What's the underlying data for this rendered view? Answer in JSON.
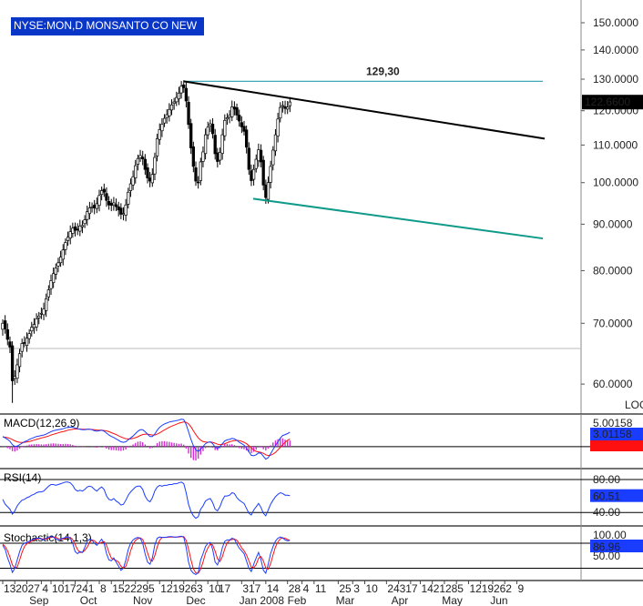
{
  "symbol_title": "NYSE:MON,D MONSANTO CO NEW",
  "log_label": "LOG",
  "colors": {
    "title_bg": "#0a36c8",
    "price_tag_bg": "#000000",
    "macd_tag_bg": "#1a3cff",
    "macd_signal_tag_bg": "#ff1010",
    "rsi_tag_bg": "#1a3cff",
    "stoch_tag_bg": "#1a3cff",
    "resistance": "#000000",
    "support": "#0f9a8a",
    "peak_line": "#3fa9b5",
    "macd_line": "#1a3cff",
    "signal_line": "#ff1010",
    "histogram": "#d030d0",
    "rsi_line": "#1a3cff",
    "stoch_k": "#1a3cff",
    "stoch_d": "#ff1010"
  },
  "chart_data": [
    {
      "type": "candlestick",
      "panel": "price",
      "yscale": "log",
      "ylim": [
        56,
        156
      ],
      "y_ticks": [
        "150.0000",
        "140.0000",
        "130.0000",
        "120.0000",
        "110.0000",
        "100.0000",
        "90.0000",
        "80.0000",
        "70.0000",
        "60.0000"
      ],
      "y_tick_values": [
        150,
        140,
        130,
        120,
        110,
        100,
        90,
        80,
        70,
        60
      ],
      "last_price_label": "122.6600",
      "last_price": 122.66,
      "peak_annotation": "129,30",
      "peak_value": 129.3,
      "closes": [
        70.0,
        69.0,
        67.2,
        65.9,
        60.5,
        61.2,
        63.0,
        64.8,
        66.5,
        66.6,
        67.4,
        68.2,
        69.3,
        69.8,
        70.8,
        71.3,
        71.8,
        72.6,
        74.5,
        76.2,
        78.0,
        79.4,
        80.5,
        81.6,
        82.8,
        84.3,
        85.9,
        87.1,
        88.3,
        89.1,
        88.6,
        88.8,
        89.6,
        89.7,
        91.0,
        92.9,
        93.8,
        94.0,
        93.8,
        94.8,
        96.8,
        98.0,
        97.6,
        95.6,
        94.5,
        94.4,
        95.0,
        94.1,
        93.3,
        92.3,
        92.5,
        94.5,
        97.6,
        99.7,
        101.5,
        104.4,
        106.3,
        107.1,
        106.2,
        103.4,
        101.2,
        100.4,
        102.1,
        106.6,
        111.8,
        114.4,
        116.0,
        117.7,
        118.8,
        120.4,
        121.8,
        122.7,
        124.1,
        125.5,
        127.7,
        127.2,
        123.0,
        115.9,
        109.2,
        104.2,
        100.4,
        100.1,
        105.4,
        108.1,
        112.9,
        115.1,
        116.1,
        113.2,
        107.6,
        105.5,
        108.0,
        112.9,
        117.1,
        117.9,
        118.6,
        121.2,
        120.5,
        118.7,
        116.9,
        115.2,
        113.9,
        109.4,
        103.4,
        100.5,
        103.4,
        106.1,
        108.7,
        105.4,
        99.4,
        96.3,
        100.0,
        104.2,
        108.6,
        112.9,
        117.5,
        121.0,
        121.6,
        120.7,
        121.1,
        122.7
      ],
      "start_date": "2007-08-13",
      "note": "daily candles, 120 trading days"
    },
    {
      "type": "line",
      "panel": "macd",
      "title": "MACD(12,26,9)",
      "value_label": "3.01158",
      "top_label": "5.00158",
      "ylim": [
        -4.0,
        6.2
      ],
      "macd_line": [
        2.1,
        1.8,
        1.5,
        1.1,
        0.4,
        0.05,
        0.1,
        0.4,
        0.7,
        1.0,
        1.2,
        1.5,
        1.7,
        1.9,
        2.1,
        2.2,
        2.3,
        2.4,
        2.6,
        2.85,
        3.1,
        3.3,
        3.4,
        3.5,
        3.6,
        3.7,
        3.9,
        4.0,
        4.05,
        4.0,
        3.85,
        3.7,
        3.6,
        3.5,
        3.5,
        3.6,
        3.6,
        3.5,
        3.3,
        3.2,
        3.3,
        3.4,
        3.2,
        2.8,
        2.4,
        2.1,
        1.9,
        1.6,
        1.3,
        1.0,
        0.9,
        1.0,
        1.4,
        1.8,
        2.2,
        2.7,
        3.2,
        3.5,
        3.5,
        3.1,
        2.6,
        2.1,
        2.1,
        2.6,
        3.4,
        4.0,
        4.4,
        4.7,
        4.9,
        5.1,
        5.2,
        5.3,
        5.4,
        5.5,
        5.7,
        5.6,
        4.6,
        3.1,
        1.5,
        0.2,
        -0.7,
        -1.0,
        -0.5,
        0.0,
        0.6,
        0.9,
        1.0,
        0.6,
        -0.1,
        -0.4,
        0.0,
        0.6,
        1.2,
        1.4,
        1.5,
        1.7,
        1.6,
        1.3,
        0.9,
        0.6,
        0.3,
        -0.3,
        -1.1,
        -1.8,
        -1.9,
        -1.7,
        -1.3,
        -1.4,
        -2.0,
        -2.6,
        -2.3,
        -1.5,
        -0.6,
        0.2,
        1.0,
        1.8,
        2.3,
        2.5,
        2.7,
        3.01
      ],
      "signal_line": [
        2.0,
        1.95,
        1.85,
        1.7,
        1.45,
        1.2,
        1.0,
        0.9,
        0.85,
        0.9,
        0.95,
        1.05,
        1.2,
        1.35,
        1.5,
        1.65,
        1.8,
        1.9,
        2.05,
        2.2,
        2.4,
        2.55,
        2.7,
        2.85,
        3.0,
        3.1,
        3.25,
        3.4,
        3.5,
        3.6,
        3.65,
        3.65,
        3.65,
        3.6,
        3.6,
        3.6,
        3.6,
        3.55,
        3.5,
        3.45,
        3.4,
        3.4,
        3.35,
        3.25,
        3.1,
        2.9,
        2.7,
        2.5,
        2.25,
        2.0,
        1.8,
        1.65,
        1.6,
        1.6,
        1.7,
        1.85,
        2.05,
        2.3,
        2.5,
        2.6,
        2.6,
        2.5,
        2.4,
        2.4,
        2.6,
        2.85,
        3.15,
        3.45,
        3.75,
        4.0,
        4.25,
        4.45,
        4.65,
        4.85,
        5.0,
        5.15,
        5.05,
        4.7,
        4.1,
        3.3,
        2.5,
        1.8,
        1.35,
        1.05,
        0.95,
        0.9,
        0.95,
        0.9,
        0.7,
        0.5,
        0.4,
        0.45,
        0.6,
        0.8,
        1.0,
        1.15,
        1.25,
        1.3,
        1.25,
        1.1,
        0.9,
        0.6,
        0.2,
        -0.3,
        -0.7,
        -1.0,
        -1.1,
        -1.2,
        -1.4,
        -1.7,
        -1.85,
        -1.8,
        -1.55,
        -1.2,
        -0.7,
        -0.15,
        0.4,
        0.9,
        1.3,
        1.6
      ]
    },
    {
      "type": "line",
      "panel": "rsi",
      "title": "RSI(14)",
      "value_label": "60.51",
      "y_ticks": [
        "80.00",
        "40.00"
      ],
      "y_tick_values": [
        80,
        40
      ],
      "ylim": [
        27,
        90
      ],
      "values": [
        56,
        50,
        47,
        44,
        38,
        42,
        48,
        52,
        55,
        56,
        58,
        59,
        61,
        62,
        64,
        65,
        65,
        66,
        69,
        72,
        74,
        74,
        73,
        74,
        75,
        76,
        77,
        77,
        76,
        73,
        68,
        66,
        67,
        66,
        68,
        71,
        72,
        71,
        68,
        66,
        69,
        71,
        68,
        60,
        56,
        55,
        57,
        54,
        52,
        49,
        50,
        55,
        61,
        65,
        68,
        71,
        72,
        72,
        68,
        60,
        55,
        53,
        58,
        66,
        71,
        73,
        72,
        73,
        73,
        74,
        74,
        75,
        75,
        76,
        77,
        75,
        64,
        50,
        41,
        36,
        33,
        35,
        44,
        48,
        54,
        56,
        57,
        52,
        44,
        42,
        47,
        55,
        60,
        60,
        61,
        64,
        63,
        58,
        55,
        53,
        51,
        45,
        39,
        37,
        43,
        47,
        51,
        46,
        39,
        36,
        43,
        50,
        55,
        59,
        62,
        64,
        63,
        61,
        61,
        60.51
      ]
    },
    {
      "type": "line",
      "panel": "stochastic",
      "title": "Stochastic(14,1,3)",
      "value_label": "86.96",
      "top_label": "100.00",
      "y_ticks": [
        "50.00"
      ],
      "y_tick_values": [
        50
      ],
      "ylim": [
        -5,
        115
      ],
      "k_line": [
        75,
        65,
        45,
        30,
        10,
        20,
        40,
        60,
        75,
        80,
        82,
        85,
        88,
        90,
        92,
        92,
        90,
        88,
        92,
        95,
        96,
        95,
        90,
        88,
        90,
        92,
        94,
        95,
        92,
        80,
        60,
        55,
        60,
        58,
        70,
        85,
        90,
        88,
        80,
        75,
        82,
        90,
        80,
        55,
        40,
        38,
        45,
        35,
        25,
        15,
        20,
        40,
        65,
        80,
        88,
        92,
        94,
        92,
        80,
        55,
        35,
        30,
        45,
        75,
        92,
        95,
        94,
        94,
        95,
        96,
        96,
        95,
        95,
        96,
        97,
        94,
        70,
        35,
        15,
        8,
        5,
        10,
        40,
        55,
        72,
        80,
        82,
        65,
        35,
        28,
        45,
        70,
        85,
        88,
        88,
        92,
        90,
        78,
        68,
        62,
        55,
        38,
        20,
        12,
        30,
        45,
        58,
        40,
        15,
        8,
        30,
        55,
        72,
        85,
        92,
        95,
        93,
        88,
        86,
        86.96
      ],
      "d_line": [
        78,
        72,
        62,
        47,
        28,
        20,
        23,
        40,
        58,
        72,
        79,
        82,
        85,
        88,
        90,
        91,
        91,
        90,
        90,
        92,
        94,
        95,
        94,
        91,
        89,
        90,
        92,
        94,
        94,
        89,
        77,
        65,
        58,
        58,
        63,
        71,
        82,
        88,
        86,
        81,
        79,
        82,
        84,
        75,
        58,
        44,
        41,
        39,
        35,
        25,
        20,
        25,
        42,
        62,
        78,
        87,
        91,
        93,
        89,
        76,
        57,
        40,
        37,
        50,
        71,
        87,
        94,
        94,
        94,
        95,
        95,
        95,
        95,
        95,
        96,
        96,
        87,
        66,
        40,
        19,
        9,
        8,
        18,
        35,
        56,
        69,
        78,
        76,
        61,
        43,
        36,
        48,
        67,
        81,
        87,
        89,
        90,
        87,
        79,
        69,
        62,
        52,
        38,
        23,
        21,
        29,
        44,
        48,
        38,
        21,
        18,
        31,
        52,
        71,
        83,
        91,
        93,
        92,
        89,
        87
      ]
    }
  ],
  "x_axis": {
    "date_labels": [
      "13",
      "20",
      "27",
      "4",
      "10",
      "17",
      "24",
      "1",
      "8",
      "15",
      "22",
      "29",
      "5",
      "12",
      "19",
      "26",
      "3",
      "10",
      "17",
      "31",
      "7",
      "14",
      "28",
      "4",
      "11",
      "25",
      "3",
      "10",
      "24",
      "31",
      "7",
      "14",
      "21",
      "28",
      "5",
      "12",
      "19",
      "26",
      "2",
      "9"
    ],
    "date_indices": [
      0,
      5,
      10,
      16,
      20,
      25,
      30,
      35,
      40,
      45,
      50,
      55,
      60,
      65,
      70,
      75,
      80,
      85,
      89,
      99,
      104,
      109,
      118,
      124,
      129,
      139,
      145,
      150,
      159,
      164,
      169,
      173,
      178,
      183,
      188,
      193,
      198,
      203,
      208,
      213
    ],
    "month_labels": [
      "Sep",
      "Oct",
      "Nov",
      "Dec",
      "Jan 2008",
      "Feb",
      "Mar",
      "Apr",
      "May",
      "Jun"
    ],
    "month_indices": [
      14,
      35,
      57,
      79,
      101,
      121,
      141,
      164,
      185,
      205
    ]
  }
}
